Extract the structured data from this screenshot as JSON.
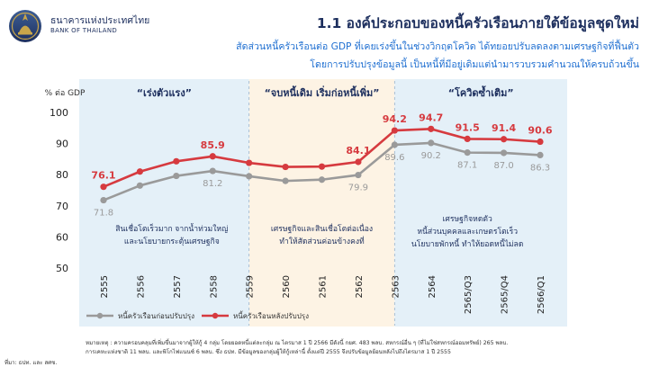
{
  "header": {
    "org_th": "ธนาคารแห่งประเทศไทย",
    "org_en": "BANK OF THAILAND",
    "title": "1.1 องค์ประกอบของหนี้ครัวเรือนภายใต้ข้อมูลชุดใหม่",
    "subtitle_line1": "สัดส่วนหนี้ครัวเรือนต่อ GDP ที่เคยเร่งขึ้นในช่วงวิกฤตโควิด ได้ทยอยปรับลดลงตามเศรษฐกิจที่ฟื้นตัว",
    "subtitle_line2": "โดยการปรับปรุงข้อมูลนี้ เป็นหนี้ที่มีอยู่เดิมแต่นำมารวบรวมคำนวณให้ครบถ้วนขึ้น"
  },
  "chart_data": {
    "type": "line",
    "ylabel": "% ต่อ GDP",
    "ylim": [
      50,
      100
    ],
    "yticks": [
      50,
      60,
      70,
      80,
      90,
      100
    ],
    "categories": [
      "2555",
      "2556",
      "2557",
      "2558",
      "2559",
      "2560",
      "2561",
      "2562",
      "2563",
      "2564",
      "2565/Q3",
      "2565/Q4",
      "2566/Q1"
    ],
    "series": [
      {
        "name": "หนี้ครัวเรือนก่อนปรับปรุง",
        "color": "#9a9a9a",
        "values": [
          71.8,
          76.5,
          79.6,
          81.2,
          79.5,
          78.0,
          78.4,
          79.9,
          89.6,
          90.2,
          87.1,
          87.0,
          86.3
        ],
        "labels": [
          "71.8",
          null,
          null,
          "81.2",
          null,
          null,
          null,
          "79.9",
          "89.6",
          "90.2",
          "87.1",
          "87.0",
          "86.3"
        ]
      },
      {
        "name": "หนี้ครัวเรือนหลังปรับปรุง",
        "color": "#d63a3f",
        "values": [
          76.1,
          81.0,
          84.3,
          85.9,
          83.8,
          82.5,
          82.6,
          84.1,
          94.2,
          94.7,
          91.5,
          91.4,
          90.6
        ],
        "labels": [
          "76.1",
          null,
          null,
          "85.9",
          null,
          null,
          null,
          "84.1",
          "94.2",
          "94.7",
          "91.5",
          "91.4",
          "90.6"
        ]
      }
    ],
    "periods": [
      {
        "label": "“เร่งตัวแรง”",
        "start": 0,
        "end": 4,
        "color": "#e4f0f8",
        "note": [
          "สินเชื่อโตเร็วมาก จากน้ำท่วมใหญ่",
          "และนโยบายกระตุ้นเศรษฐกิจ"
        ]
      },
      {
        "label": "“จบหนี้เดิม เริ่มก่อหนี้เพิ่ม”",
        "start": 4,
        "end": 8,
        "color": "#fdf3e4",
        "note": [
          "เศรษฐกิจและสินเชื่อโตต่อเนื่อง",
          "ทำให้สัดส่วนค่อนข้างคงที่"
        ]
      },
      {
        "label": "“โควิดซ้ำเติม”",
        "start": 8,
        "end": 12,
        "color": "#e4f0f8",
        "note": [
          "เศรษฐกิจหดตัว",
          "หนี้ส่วนบุคคลและเกษตรโตเร็ว",
          "นโยบายพักหนี้ ทำให้ยอดหนี้ไม่ลด"
        ]
      }
    ],
    "legend_position": "bottom-left",
    "grid": false
  },
  "footer": {
    "note_line1": "หมายเหตุ : ความครอบคลุมที่เพิ่มขึ้นมาจากผู้ให้กู้ 4 กลุ่ม โดยยอดหนี้แต่ละกลุ่ม ณ ไตรมาส 1 ปี 2566 มีดังนี้ กยศ. 483 พลบ. สหกรณ์อื่น ๆ (ที่ไม่ใช่สหกรณ์ออมทรัพย์) 265 พลบ.",
    "note_line2": "การเคหะแห่งชาติ 11 พลบ. และพิโกไฟแนนซ์ 6 พลบ. ซึ่ง ธปท. มีข้อมูลของกลุ่มผู้ให้กู้เหล่านี้ ตั้งแต่ปี 2555 จึงปรับข้อมูลย้อนหลังไปถึงไตรมาส 1 ปี 2555",
    "source": "ที่มา: ธปท. และ สศช."
  }
}
